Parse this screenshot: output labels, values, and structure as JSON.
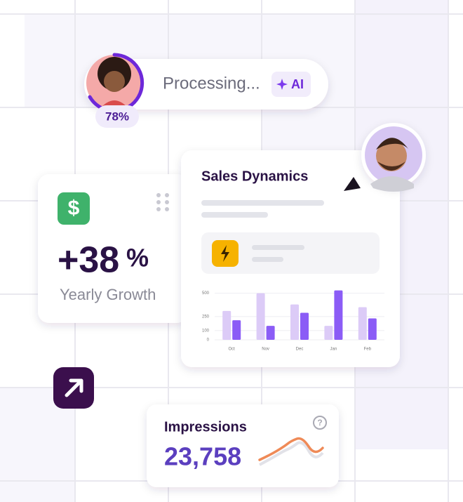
{
  "processing": {
    "status": "Processing...",
    "badge": "AI",
    "progress": "78%"
  },
  "growth": {
    "value": "+38",
    "unit": "%",
    "label": "Yearly Growth"
  },
  "chart_data": {
    "type": "bar",
    "title": "Sales Dynamics",
    "categories": [
      "Oct",
      "Nov",
      "Dec",
      "Jan",
      "Feb"
    ],
    "series": [
      {
        "color": "#dccbf7",
        "values": [
          310,
          500,
          380,
          150,
          350
        ]
      },
      {
        "color": "#8b5cf6",
        "values": [
          210,
          150,
          290,
          530,
          230
        ]
      }
    ],
    "ylim": [
      0,
      550
    ],
    "yticks": [
      0,
      100,
      250,
      500
    ],
    "grid": true
  },
  "impressions": {
    "title": "Impressions",
    "value": "23,758"
  }
}
